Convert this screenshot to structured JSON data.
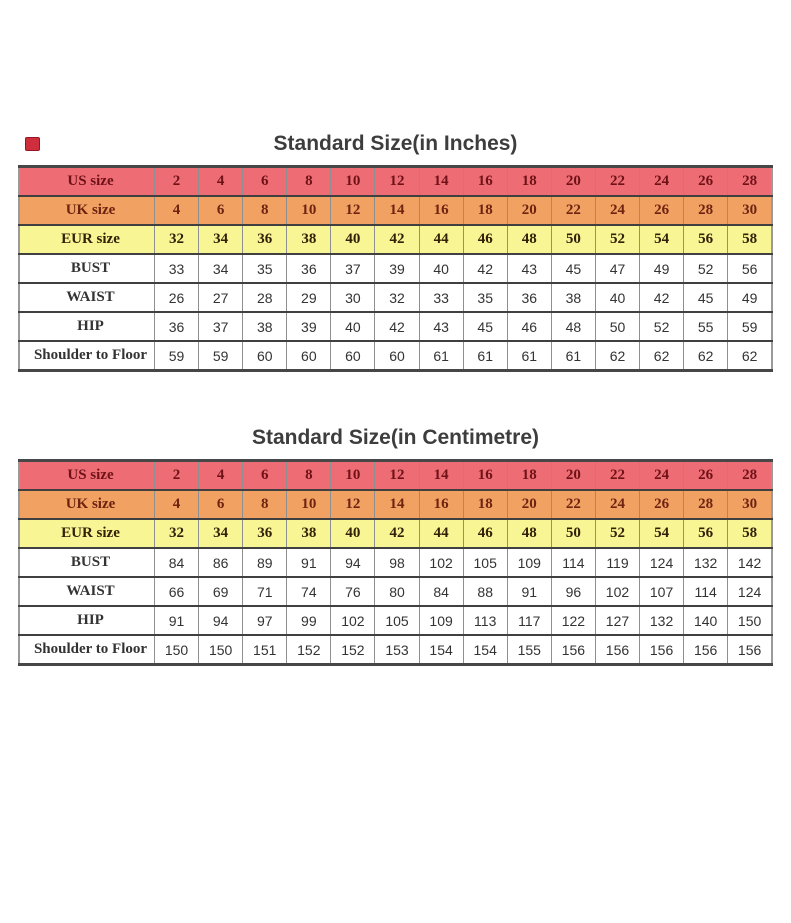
{
  "page": {
    "background": "#ffffff",
    "icons": {
      "top_left": [
        "broken-image-icon",
        "broken-image-icon"
      ],
      "broken_image_color": "#cf2e3c"
    }
  },
  "row_styles": {
    "us": {
      "bg": "#ee6d75",
      "text": "#6e1217"
    },
    "uk": {
      "bg": "#f1a263",
      "text": "#6e2310"
    },
    "eur": {
      "bg": "#f8f694",
      "text": "#332008"
    },
    "body": {
      "bg": "#ffffff",
      "text": "#333333"
    }
  },
  "tables": [
    {
      "title": "Standard Size(in Inches)",
      "rows": [
        {
          "label": "US size",
          "style": "us",
          "values": [
            2,
            4,
            6,
            8,
            10,
            12,
            14,
            16,
            18,
            20,
            22,
            24,
            26,
            28
          ]
        },
        {
          "label": "UK size",
          "style": "uk",
          "values": [
            4,
            6,
            8,
            10,
            12,
            14,
            16,
            18,
            20,
            22,
            24,
            26,
            28,
            30
          ]
        },
        {
          "label": "EUR size",
          "style": "eur",
          "values": [
            32,
            34,
            36,
            38,
            40,
            42,
            44,
            46,
            48,
            50,
            52,
            54,
            56,
            58
          ]
        },
        {
          "label": "BUST",
          "style": "body",
          "values": [
            33,
            34,
            35,
            36,
            37,
            39,
            40,
            42,
            43,
            45,
            47,
            49,
            52,
            56
          ]
        },
        {
          "label": "WAIST",
          "style": "body",
          "values": [
            26,
            27,
            28,
            29,
            30,
            32,
            33,
            35,
            36,
            38,
            40,
            42,
            45,
            49
          ]
        },
        {
          "label": "HIP",
          "style": "body",
          "values": [
            36,
            37,
            38,
            39,
            40,
            42,
            43,
            45,
            46,
            48,
            50,
            52,
            55,
            59
          ]
        },
        {
          "label": "Shoulder to Floor",
          "style": "body",
          "values": [
            59,
            59,
            60,
            60,
            60,
            60,
            61,
            61,
            61,
            61,
            62,
            62,
            62,
            62
          ]
        }
      ]
    },
    {
      "title": "Standard Size(in Centimetre)",
      "rows": [
        {
          "label": "US size",
          "style": "us",
          "values": [
            2,
            4,
            6,
            8,
            10,
            12,
            14,
            16,
            18,
            20,
            22,
            24,
            26,
            28
          ]
        },
        {
          "label": "UK size",
          "style": "uk",
          "values": [
            4,
            6,
            8,
            10,
            12,
            14,
            16,
            18,
            20,
            22,
            24,
            26,
            28,
            30
          ]
        },
        {
          "label": "EUR size",
          "style": "eur",
          "values": [
            32,
            34,
            36,
            38,
            40,
            42,
            44,
            46,
            48,
            50,
            52,
            54,
            56,
            58
          ]
        },
        {
          "label": "BUST",
          "style": "body",
          "values": [
            84,
            86,
            89,
            91,
            94,
            98,
            102,
            105,
            109,
            114,
            119,
            124,
            132,
            142
          ]
        },
        {
          "label": "WAIST",
          "style": "body",
          "values": [
            66,
            69,
            71,
            74,
            76,
            80,
            84,
            88,
            91,
            96,
            102,
            107,
            114,
            124
          ]
        },
        {
          "label": "HIP",
          "style": "body",
          "values": [
            91,
            94,
            97,
            99,
            102,
            105,
            109,
            113,
            117,
            122,
            127,
            132,
            140,
            150
          ]
        },
        {
          "label": "Shoulder to Floor",
          "style": "body",
          "values": [
            150,
            150,
            151,
            152,
            152,
            153,
            154,
            154,
            155,
            156,
            156,
            156,
            156,
            156
          ]
        }
      ]
    }
  ]
}
